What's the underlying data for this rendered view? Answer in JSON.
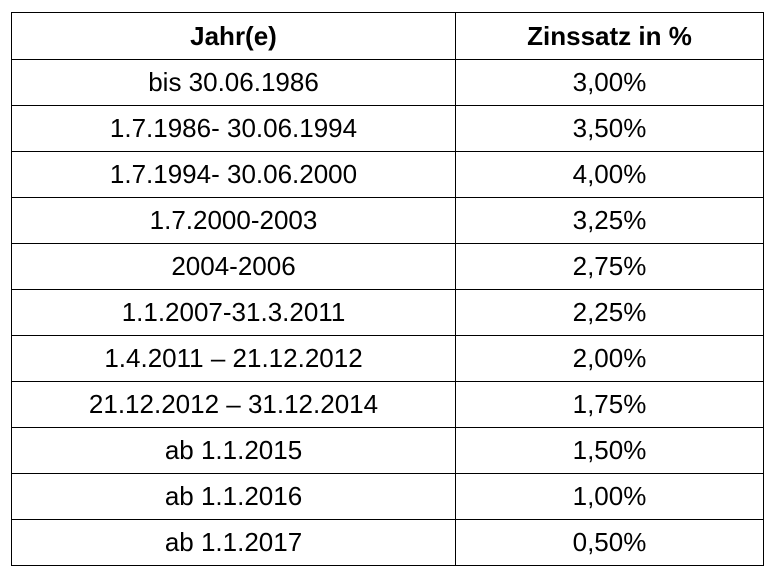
{
  "table": {
    "headers": [
      "Jahr(e)",
      "Zinssatz in %"
    ],
    "rows": [
      [
        "bis 30.06.1986",
        "3,00%"
      ],
      [
        "1.7.1986- 30.06.1994",
        "3,50%"
      ],
      [
        "1.7.1994- 30.06.2000",
        "4,00%"
      ],
      [
        "1.7.2000-2003",
        "3,25%"
      ],
      [
        "2004-2006",
        "2,75%"
      ],
      [
        "1.1.2007-31.3.2011",
        "2,25%"
      ],
      [
        "1.4.2011 – 21.12.2012",
        "2,00%"
      ],
      [
        "21.12.2012 – 31.12.2014",
        "1,75%"
      ],
      [
        "ab 1.1.2015",
        "1,50%"
      ],
      [
        "ab 1.1.2016",
        "1,00%"
      ],
      [
        "ab 1.1.2017",
        "0,50%"
      ]
    ]
  }
}
